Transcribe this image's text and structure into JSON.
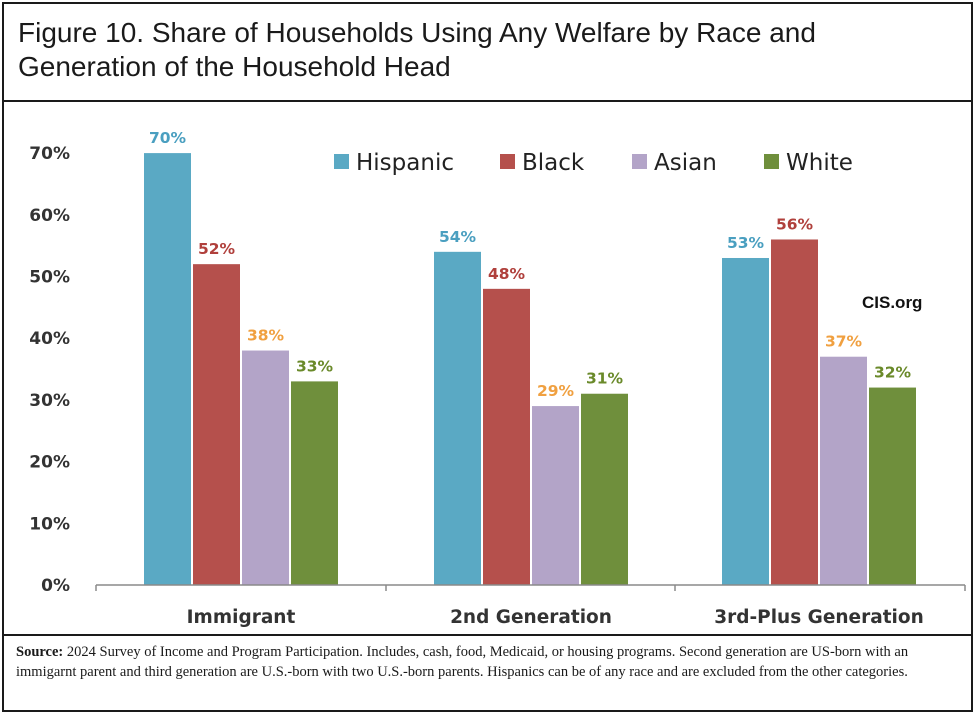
{
  "title": "Figure 10. Share of Households Using Any Welfare by Race and Generation of the Household Head",
  "watermark": "CIS.org",
  "source": {
    "label": "Source:",
    "text": "2024 Survey of Income and Program Participation.  Includes, cash, food, Medicaid, or housing programs.  Second generation are US-born with an immigarnt parent and third generation are U.S.-born with two U.S.-born parents. Hispanics can be of any race and are excluded from the other categories."
  },
  "chart_data": {
    "type": "bar",
    "title": "Figure 10. Share of Households Using Any Welfare by Race and Generation of the Household Head",
    "categories": [
      "Immigrant",
      "2nd Generation",
      "3rd-Plus Generation"
    ],
    "series": [
      {
        "name": "Hispanic",
        "values": [
          70,
          54,
          53
        ],
        "labels": [
          "70%",
          "54%",
          "53%"
        ],
        "color": "#5aa9c4",
        "label_color": "#4a9fc0"
      },
      {
        "name": "Black",
        "values": [
          52,
          48,
          56
        ],
        "labels": [
          "52%",
          "48%",
          "56%"
        ],
        "color": "#b5504c",
        "label_color": "#b0403c"
      },
      {
        "name": "Asian",
        "values": [
          38,
          29,
          37
        ],
        "labels": [
          "38%",
          "29%",
          "37%"
        ],
        "color": "#b3a4c8",
        "label_color": "#f0a040"
      },
      {
        "name": "White",
        "values": [
          33,
          31,
          32
        ],
        "labels": [
          "33%",
          "31%",
          "32%"
        ],
        "color": "#6f8f3c",
        "label_color": "#6a8a2a"
      }
    ],
    "yticks": [
      "0%",
      "10%",
      "20%",
      "30%",
      "40%",
      "50%",
      "60%",
      "70%"
    ],
    "ylim": [
      0,
      70
    ],
    "xlabel": "",
    "ylabel": "",
    "legend_position": "top-right",
    "grid": false
  }
}
